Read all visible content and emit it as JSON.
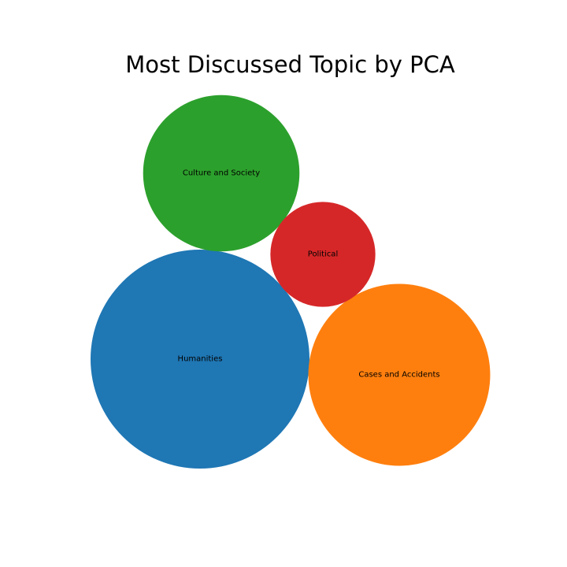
{
  "chart_data": {
    "type": "bubble",
    "title": "Most Discussed Topic by PCA",
    "items": [
      {
        "label": "Humanities",
        "value": 100,
        "color": "#1f77b4"
      },
      {
        "label": "Cases and Accidents",
        "value": 69,
        "color": "#ff7f0e"
      },
      {
        "label": "Culture and Society",
        "value": 51,
        "color": "#2ca02c"
      },
      {
        "label": "Political",
        "value": 23,
        "color": "#d62728"
      }
    ]
  }
}
